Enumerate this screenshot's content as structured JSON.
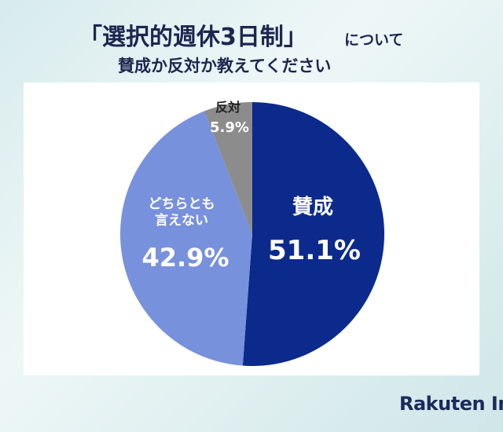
{
  "chart_data": {
    "type": "pie",
    "title": "「選択的週休3日制」",
    "title_suffix": "について",
    "subtitle": "賛成か反対か教えてください",
    "categories": [
      "賛成",
      "どちらとも言えない",
      "反対"
    ],
    "values": [
      51.1,
      42.9,
      5.9
    ],
    "value_labels": [
      "51.1%",
      "42.9%",
      "5.9%"
    ],
    "colors": [
      "#0b2a8c",
      "#7891dc",
      "#8c8c8c"
    ],
    "brand": "Rakuten In"
  }
}
